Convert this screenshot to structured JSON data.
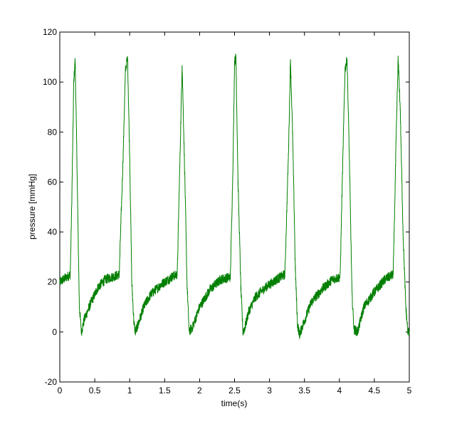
{
  "chart_data": {
    "type": "line",
    "title": "",
    "xlabel": "time(s)",
    "ylabel": "pressure [mmHg]",
    "xlim": [
      0,
      5
    ],
    "ylim": [
      -20,
      120
    ],
    "x_ticks": [
      0,
      0.5,
      1,
      1.5,
      2,
      2.5,
      3,
      3.5,
      4,
      4.5,
      5
    ],
    "x_tick_labels": [
      "0",
      "0.5",
      "1",
      "1.5",
      "2",
      "2.5",
      "3",
      "3.5",
      "4",
      "4.5",
      "5"
    ],
    "y_ticks": [
      -20,
      0,
      20,
      40,
      60,
      80,
      100,
      120
    ],
    "y_tick_labels": [
      "-20",
      "0",
      "20",
      "40",
      "60",
      "80",
      "100",
      "120"
    ],
    "grid": false,
    "legend": "none",
    "series": [
      {
        "color": "#007f00",
        "noise_amplitude": 2,
        "x": [
          0,
          0.1,
          0.15,
          0.17,
          0.2,
          0.22,
          0.25,
          0.28,
          0.31,
          0.35,
          0.45,
          0.55,
          0.65,
          0.75,
          0.85,
          0.9,
          0.94,
          0.97,
          1.0,
          1.03,
          1.06,
          1.08,
          1.12,
          1.2,
          1.3,
          1.45,
          1.6,
          1.68,
          1.72,
          1.75,
          1.79,
          1.82,
          1.85,
          1.9,
          2.0,
          2.15,
          2.3,
          2.44,
          2.48,
          2.5,
          2.52,
          2.55,
          2.59,
          2.62,
          2.65,
          2.7,
          2.8,
          2.95,
          3.1,
          3.22,
          3.27,
          3.3,
          3.33,
          3.37,
          3.4,
          3.43,
          3.48,
          3.6,
          3.75,
          3.9,
          4.01,
          4.05,
          4.08,
          4.11,
          4.15,
          4.18,
          4.21,
          4.26,
          4.35,
          4.5,
          4.65,
          4.77,
          4.81,
          4.84,
          4.87,
          4.91,
          4.95,
          4.98,
          5.0
        ],
        "y": [
          20,
          22,
          23,
          50,
          100,
          109,
          60,
          10,
          0,
          5,
          12,
          18,
          21,
          22,
          23,
          65,
          105,
          110,
          70,
          20,
          4,
          0,
          3,
          10,
          15,
          19,
          22,
          23,
          70,
          108,
          60,
          20,
          0,
          2,
          10,
          17,
          21,
          22,
          70,
          108,
          110,
          60,
          18,
          0,
          2,
          8,
          14,
          18,
          21,
          23,
          70,
          109,
          80,
          25,
          3,
          -1,
          3,
          12,
          17,
          21,
          22,
          70,
          105,
          109,
          60,
          15,
          1,
          0,
          10,
          16,
          21,
          23,
          75,
          109,
          90,
          40,
          10,
          0,
          0
        ]
      }
    ]
  }
}
